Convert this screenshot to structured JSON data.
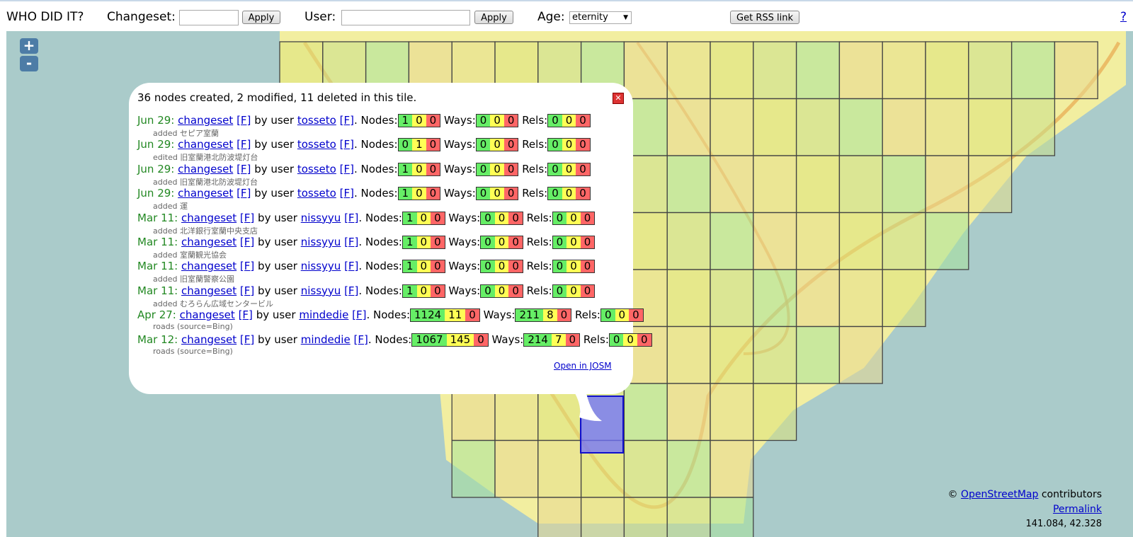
{
  "toolbar": {
    "title": "WHO DID IT?",
    "changeset_label": "Changeset:",
    "changeset_apply": "Apply",
    "user_label": "User:",
    "user_apply": "Apply",
    "age_label": "Age:",
    "age_value": "eternity",
    "rss": "Get RSS link",
    "help": "?"
  },
  "map": {
    "zoom_in": "+",
    "zoom_out": "-",
    "attribution_prefix": "©",
    "attribution_link": "OpenStreetMap",
    "attribution_suffix": "contributors",
    "permalink": "Permalink",
    "coords": "141.084, 42.328"
  },
  "popup": {
    "summary": "36 nodes created, 2 modified, 11 deleted in this tile.",
    "labels": {
      "changeset": "changeset",
      "f": "[F]",
      "by_user": "by user",
      "nodes": ". Nodes:",
      "ways": "Ways:",
      "rels": "Rels:"
    },
    "entries": [
      {
        "date": "Jun 29:",
        "user": "tosseto",
        "nodes": [
          1,
          0,
          0
        ],
        "ways": [
          0,
          0,
          0
        ],
        "rels": [
          0,
          0,
          0
        ],
        "comment": "added セピア室蘭"
      },
      {
        "date": "Jun 29:",
        "user": "tosseto",
        "nodes": [
          0,
          1,
          0
        ],
        "ways": [
          0,
          0,
          0
        ],
        "rels": [
          0,
          0,
          0
        ],
        "comment": "edited 旧室蘭港北防波堤灯台"
      },
      {
        "date": "Jun 29:",
        "user": "tosseto",
        "nodes": [
          1,
          0,
          0
        ],
        "ways": [
          0,
          0,
          0
        ],
        "rels": [
          0,
          0,
          0
        ],
        "comment": "added 旧室蘭港北防波堤灯台"
      },
      {
        "date": "Jun 29:",
        "user": "tosseto",
        "nodes": [
          1,
          0,
          0
        ],
        "ways": [
          0,
          0,
          0
        ],
        "rels": [
          0,
          0,
          0
        ],
        "comment": "added 運"
      },
      {
        "date": "Mar 11:",
        "user": "nissyyu",
        "nodes": [
          1,
          0,
          0
        ],
        "ways": [
          0,
          0,
          0
        ],
        "rels": [
          0,
          0,
          0
        ],
        "comment": "added 北洋銀行室蘭中央支店"
      },
      {
        "date": "Mar 11:",
        "user": "nissyyu",
        "nodes": [
          1,
          0,
          0
        ],
        "ways": [
          0,
          0,
          0
        ],
        "rels": [
          0,
          0,
          0
        ],
        "comment": "added 室蘭観光協会"
      },
      {
        "date": "Mar 11:",
        "user": "nissyyu",
        "nodes": [
          1,
          0,
          0
        ],
        "ways": [
          0,
          0,
          0
        ],
        "rels": [
          0,
          0,
          0
        ],
        "comment": "added 旧室蘭警察公園"
      },
      {
        "date": "Mar 11:",
        "user": "nissyyu",
        "nodes": [
          1,
          0,
          0
        ],
        "ways": [
          0,
          0,
          0
        ],
        "rels": [
          0,
          0,
          0
        ],
        "comment": "added むろらん広域センタービル"
      },
      {
        "date": "Apr 27:",
        "user": "mindedie",
        "nodes": [
          1124,
          11,
          0
        ],
        "ways": [
          211,
          8,
          0
        ],
        "rels": [
          0,
          0,
          0
        ],
        "comment": "roads (source=Bing)"
      },
      {
        "date": "Mar 12:",
        "user": "mindedie",
        "nodes": [
          1067,
          145,
          0
        ],
        "ways": [
          214,
          7,
          0
        ],
        "rels": [
          0,
          0,
          0
        ],
        "comment": "roads (source=Bing)"
      }
    ],
    "josm": "Open in JOSM"
  }
}
